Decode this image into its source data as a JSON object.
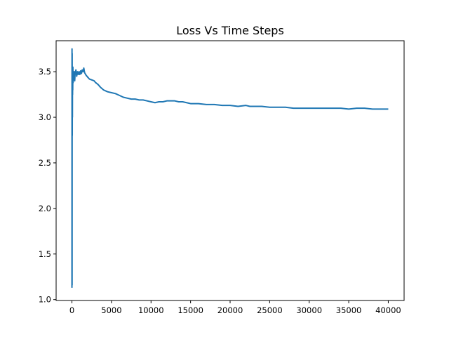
{
  "chart_data": {
    "type": "line",
    "title": "Loss Vs Time Steps",
    "xlabel": "",
    "ylabel": "",
    "xlim": [
      -2000,
      42000
    ],
    "ylim": [
      0.99,
      3.84
    ],
    "x_ticks": [
      0,
      5000,
      10000,
      15000,
      20000,
      25000,
      30000,
      35000,
      40000
    ],
    "x_tick_labels": [
      "0",
      "5000",
      "10000",
      "15000",
      "20000",
      "25000",
      "30000",
      "35000",
      "40000"
    ],
    "y_ticks": [
      1.0,
      1.5,
      2.0,
      2.5,
      3.0,
      3.5
    ],
    "y_tick_labels": [
      "1.0",
      "1.5",
      "2.0",
      "2.5",
      "3.0",
      "3.5"
    ],
    "grid": false,
    "line_color": "#1f77b4",
    "series": [
      {
        "name": "",
        "x": [
          0,
          10,
          20,
          30,
          40,
          50,
          60,
          70,
          80,
          90,
          100,
          120,
          150,
          200,
          250,
          300,
          350,
          400,
          500,
          600,
          700,
          800,
          900,
          1000,
          1100,
          1200,
          1300,
          1400,
          1500,
          1600,
          1800,
          2000,
          2200,
          2500,
          2800,
          3000,
          3300,
          3600,
          4000,
          4500,
          5000,
          5500,
          6000,
          6500,
          7000,
          7500,
          8000,
          8500,
          9000,
          9500,
          10000,
          10500,
          11000,
          11500,
          12000,
          12500,
          13000,
          13500,
          14000,
          14500,
          15000,
          16000,
          17000,
          18000,
          19000,
          20000,
          21000,
          22000,
          22500,
          23000,
          24000,
          25000,
          26000,
          27000,
          28000,
          29000,
          30000,
          31000,
          32000,
          33000,
          34000,
          35000,
          36000,
          37000,
          38000,
          39000,
          40000
        ],
        "y": [
          1.13,
          3.75,
          1.16,
          3.7,
          2.8,
          3.45,
          3.0,
          3.55,
          3.25,
          3.5,
          3.3,
          3.55,
          3.38,
          3.5,
          3.45,
          3.5,
          3.4,
          3.48,
          3.52,
          3.45,
          3.5,
          3.47,
          3.5,
          3.47,
          3.51,
          3.48,
          3.52,
          3.5,
          3.54,
          3.49,
          3.46,
          3.44,
          3.42,
          3.41,
          3.4,
          3.38,
          3.36,
          3.33,
          3.3,
          3.28,
          3.27,
          3.26,
          3.24,
          3.22,
          3.21,
          3.2,
          3.2,
          3.19,
          3.19,
          3.18,
          3.17,
          3.16,
          3.17,
          3.17,
          3.18,
          3.18,
          3.18,
          3.17,
          3.17,
          3.16,
          3.15,
          3.15,
          3.14,
          3.14,
          3.13,
          3.13,
          3.12,
          3.13,
          3.12,
          3.12,
          3.12,
          3.11,
          3.11,
          3.11,
          3.1,
          3.1,
          3.1,
          3.1,
          3.1,
          3.1,
          3.1,
          3.09,
          3.1,
          3.1,
          3.09,
          3.09,
          3.09
        ]
      }
    ]
  }
}
